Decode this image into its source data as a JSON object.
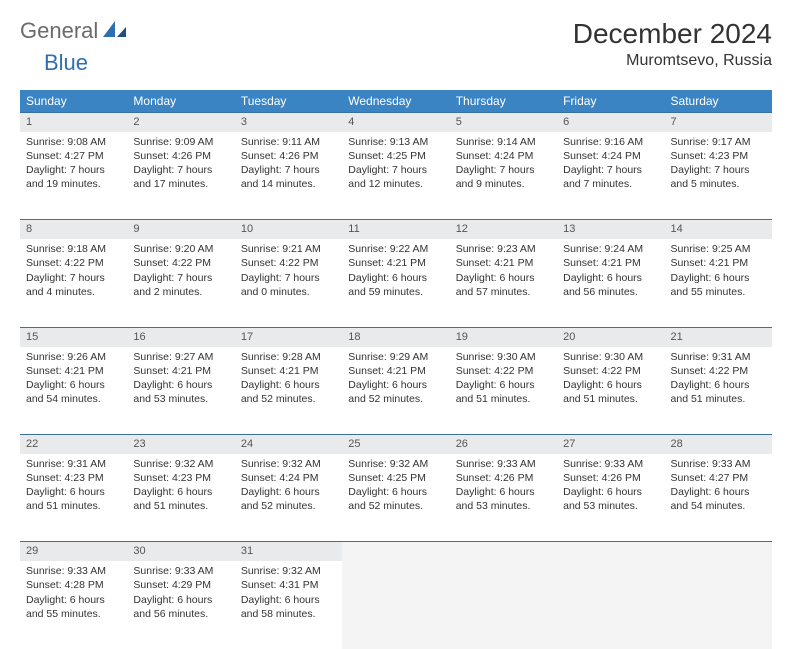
{
  "logo": {
    "general": "General",
    "blue": "Blue"
  },
  "title": "December 2024",
  "location": "Muromtsevo, Russia",
  "colors": {
    "header_bg": "#3b84c4",
    "header_text": "#ffffff",
    "daynum_bg": "#e8eaec",
    "daynum_border": "#3b6f9f",
    "logo_gray": "#6b6b6b",
    "logo_blue": "#2f6fb0"
  },
  "weekdays": [
    "Sunday",
    "Monday",
    "Tuesday",
    "Wednesday",
    "Thursday",
    "Friday",
    "Saturday"
  ],
  "weeks": [
    [
      {
        "n": "1",
        "sr": "Sunrise: 9:08 AM",
        "ss": "Sunset: 4:27 PM",
        "d1": "Daylight: 7 hours",
        "d2": "and 19 minutes."
      },
      {
        "n": "2",
        "sr": "Sunrise: 9:09 AM",
        "ss": "Sunset: 4:26 PM",
        "d1": "Daylight: 7 hours",
        "d2": "and 17 minutes."
      },
      {
        "n": "3",
        "sr": "Sunrise: 9:11 AM",
        "ss": "Sunset: 4:26 PM",
        "d1": "Daylight: 7 hours",
        "d2": "and 14 minutes."
      },
      {
        "n": "4",
        "sr": "Sunrise: 9:13 AM",
        "ss": "Sunset: 4:25 PM",
        "d1": "Daylight: 7 hours",
        "d2": "and 12 minutes."
      },
      {
        "n": "5",
        "sr": "Sunrise: 9:14 AM",
        "ss": "Sunset: 4:24 PM",
        "d1": "Daylight: 7 hours",
        "d2": "and 9 minutes."
      },
      {
        "n": "6",
        "sr": "Sunrise: 9:16 AM",
        "ss": "Sunset: 4:24 PM",
        "d1": "Daylight: 7 hours",
        "d2": "and 7 minutes."
      },
      {
        "n": "7",
        "sr": "Sunrise: 9:17 AM",
        "ss": "Sunset: 4:23 PM",
        "d1": "Daylight: 7 hours",
        "d2": "and 5 minutes."
      }
    ],
    [
      {
        "n": "8",
        "sr": "Sunrise: 9:18 AM",
        "ss": "Sunset: 4:22 PM",
        "d1": "Daylight: 7 hours",
        "d2": "and 4 minutes."
      },
      {
        "n": "9",
        "sr": "Sunrise: 9:20 AM",
        "ss": "Sunset: 4:22 PM",
        "d1": "Daylight: 7 hours",
        "d2": "and 2 minutes."
      },
      {
        "n": "10",
        "sr": "Sunrise: 9:21 AM",
        "ss": "Sunset: 4:22 PM",
        "d1": "Daylight: 7 hours",
        "d2": "and 0 minutes."
      },
      {
        "n": "11",
        "sr": "Sunrise: 9:22 AM",
        "ss": "Sunset: 4:21 PM",
        "d1": "Daylight: 6 hours",
        "d2": "and 59 minutes."
      },
      {
        "n": "12",
        "sr": "Sunrise: 9:23 AM",
        "ss": "Sunset: 4:21 PM",
        "d1": "Daylight: 6 hours",
        "d2": "and 57 minutes."
      },
      {
        "n": "13",
        "sr": "Sunrise: 9:24 AM",
        "ss": "Sunset: 4:21 PM",
        "d1": "Daylight: 6 hours",
        "d2": "and 56 minutes."
      },
      {
        "n": "14",
        "sr": "Sunrise: 9:25 AM",
        "ss": "Sunset: 4:21 PM",
        "d1": "Daylight: 6 hours",
        "d2": "and 55 minutes."
      }
    ],
    [
      {
        "n": "15",
        "sr": "Sunrise: 9:26 AM",
        "ss": "Sunset: 4:21 PM",
        "d1": "Daylight: 6 hours",
        "d2": "and 54 minutes."
      },
      {
        "n": "16",
        "sr": "Sunrise: 9:27 AM",
        "ss": "Sunset: 4:21 PM",
        "d1": "Daylight: 6 hours",
        "d2": "and 53 minutes."
      },
      {
        "n": "17",
        "sr": "Sunrise: 9:28 AM",
        "ss": "Sunset: 4:21 PM",
        "d1": "Daylight: 6 hours",
        "d2": "and 52 minutes."
      },
      {
        "n": "18",
        "sr": "Sunrise: 9:29 AM",
        "ss": "Sunset: 4:21 PM",
        "d1": "Daylight: 6 hours",
        "d2": "and 52 minutes."
      },
      {
        "n": "19",
        "sr": "Sunrise: 9:30 AM",
        "ss": "Sunset: 4:22 PM",
        "d1": "Daylight: 6 hours",
        "d2": "and 51 minutes."
      },
      {
        "n": "20",
        "sr": "Sunrise: 9:30 AM",
        "ss": "Sunset: 4:22 PM",
        "d1": "Daylight: 6 hours",
        "d2": "and 51 minutes."
      },
      {
        "n": "21",
        "sr": "Sunrise: 9:31 AM",
        "ss": "Sunset: 4:22 PM",
        "d1": "Daylight: 6 hours",
        "d2": "and 51 minutes."
      }
    ],
    [
      {
        "n": "22",
        "sr": "Sunrise: 9:31 AM",
        "ss": "Sunset: 4:23 PM",
        "d1": "Daylight: 6 hours",
        "d2": "and 51 minutes."
      },
      {
        "n": "23",
        "sr": "Sunrise: 9:32 AM",
        "ss": "Sunset: 4:23 PM",
        "d1": "Daylight: 6 hours",
        "d2": "and 51 minutes."
      },
      {
        "n": "24",
        "sr": "Sunrise: 9:32 AM",
        "ss": "Sunset: 4:24 PM",
        "d1": "Daylight: 6 hours",
        "d2": "and 52 minutes."
      },
      {
        "n": "25",
        "sr": "Sunrise: 9:32 AM",
        "ss": "Sunset: 4:25 PM",
        "d1": "Daylight: 6 hours",
        "d2": "and 52 minutes."
      },
      {
        "n": "26",
        "sr": "Sunrise: 9:33 AM",
        "ss": "Sunset: 4:26 PM",
        "d1": "Daylight: 6 hours",
        "d2": "and 53 minutes."
      },
      {
        "n": "27",
        "sr": "Sunrise: 9:33 AM",
        "ss": "Sunset: 4:26 PM",
        "d1": "Daylight: 6 hours",
        "d2": "and 53 minutes."
      },
      {
        "n": "28",
        "sr": "Sunrise: 9:33 AM",
        "ss": "Sunset: 4:27 PM",
        "d1": "Daylight: 6 hours",
        "d2": "and 54 minutes."
      }
    ],
    [
      {
        "n": "29",
        "sr": "Sunrise: 9:33 AM",
        "ss": "Sunset: 4:28 PM",
        "d1": "Daylight: 6 hours",
        "d2": "and 55 minutes."
      },
      {
        "n": "30",
        "sr": "Sunrise: 9:33 AM",
        "ss": "Sunset: 4:29 PM",
        "d1": "Daylight: 6 hours",
        "d2": "and 56 minutes."
      },
      {
        "n": "31",
        "sr": "Sunrise: 9:32 AM",
        "ss": "Sunset: 4:31 PM",
        "d1": "Daylight: 6 hours",
        "d2": "and 58 minutes."
      },
      null,
      null,
      null,
      null
    ]
  ]
}
